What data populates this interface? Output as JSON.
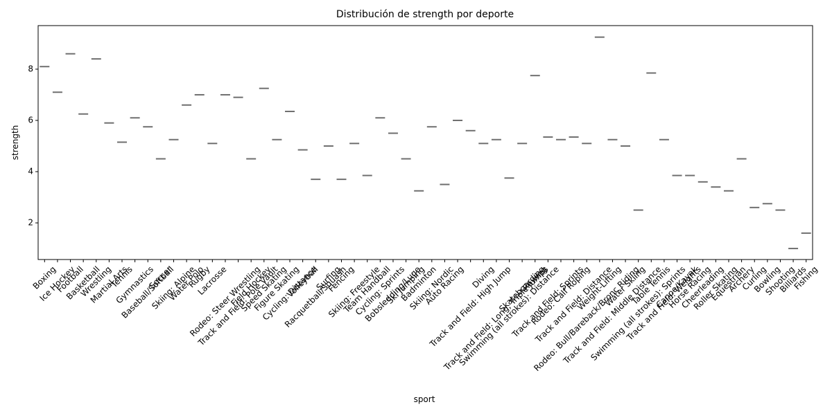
{
  "chart_data": {
    "type": "violin",
    "title": "Distribución de strength por deporte",
    "x_label": "sport",
    "y_label": "strength",
    "categories": [
      "Boxing",
      "Ice Hockey",
      "Football",
      "Basketball",
      "Wrestling",
      "Martial Arts",
      "Tennis",
      "Gymnastics",
      "Baseball/Softball",
      "Soccer",
      "Skiing: Alpine",
      "Water Polo",
      "Rugby",
      "Lacrosse",
      "Rodeo: Steer Wrestling",
      "Track and Field: Pole Vault",
      "Field Hockey",
      "Speed Skating",
      "Figure Skating",
      "Cycling: Distance",
      "Volleyball",
      "Racquetball/Squash",
      "Surfing",
      "Fencing",
      "Skiing: Freestyle",
      "Team Handball",
      "Cycling: Sprints",
      "Bobsledding/Luge",
      "Ski Jumping",
      "Badminton",
      "Skiing: Nordic",
      "Auto Racing",
      null,
      "Track and Field: High Jump",
      "Diving",
      "Track and Field: Long, Triple jumps",
      "Swimming (all strokes): Distance",
      "Skateboarding",
      "Rowing",
      "Track and Field: Sprints",
      "Rodeo: Calf Roping",
      "Track and Field: Distance",
      "Rodeo: Bull/Bareback/Bronc Riding",
      "Weight-Lifting",
      "Track and Field: Middle Distance",
      "Water Skiing",
      "Swimming (all strokes): Sprints",
      "Table Tennis",
      "Track and Field: Weights",
      "Canoe/Kayak",
      "Horse Racing",
      "Cheerleading",
      "Roller Skating",
      "Equestrian",
      "Archery",
      "Curling",
      "Bowling",
      "Shooting",
      "Billiards",
      "Fishing"
    ],
    "values": [
      8.1,
      7.1,
      8.6,
      6.25,
      8.4,
      5.9,
      5.15,
      6.1,
      5.75,
      4.5,
      5.25,
      6.6,
      7.0,
      5.1,
      7.0,
      6.9,
      4.5,
      7.25,
      5.25,
      6.35,
      4.85,
      3.7,
      5.0,
      3.7,
      5.1,
      3.85,
      6.1,
      5.5,
      4.5,
      3.25,
      5.75,
      3.5,
      6.0,
      5.6,
      5.1,
      5.25,
      3.75,
      5.1,
      7.75,
      5.35,
      5.25,
      5.35,
      5.1,
      9.25,
      5.25,
      5.0,
      2.5,
      7.85,
      5.25,
      3.85,
      3.85,
      3.6,
      3.4,
      3.25,
      4.5,
      2.6,
      2.75,
      2.5,
      1.0,
      1.6
    ],
    "color": "#6e6e6e",
    "ylim": [
      0.57,
      9.7
    ],
    "yticks": [
      2,
      4,
      6,
      8
    ]
  }
}
